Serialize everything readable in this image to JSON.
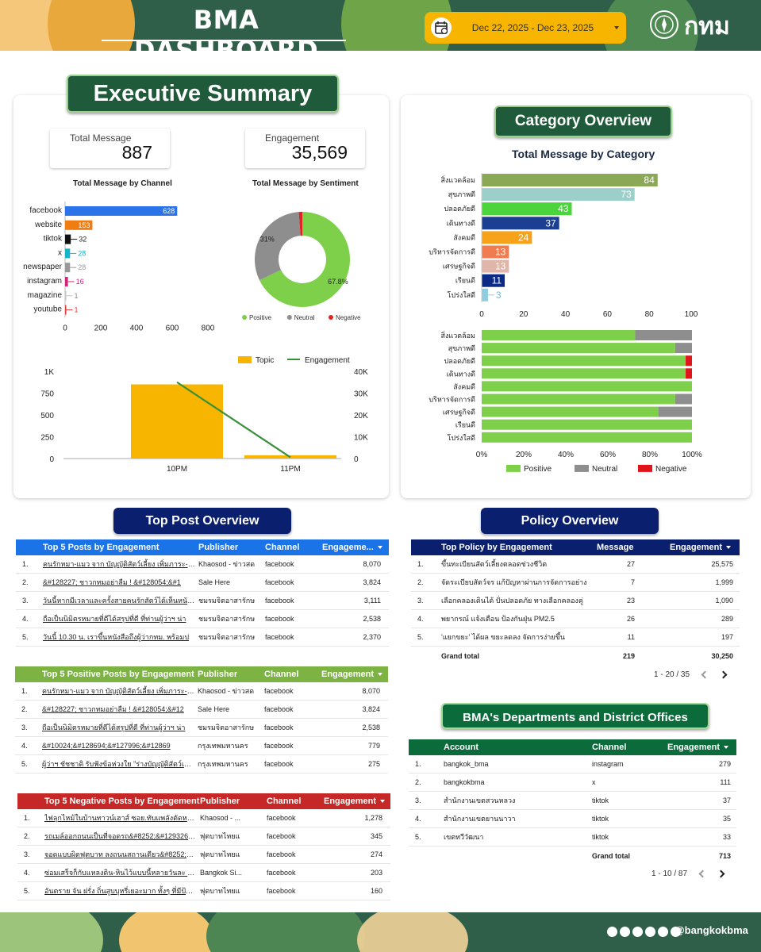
{
  "header": {
    "title": "BMA DASHBOARD",
    "date_range": "Dec 22, 2025 - Dec 23, 2025",
    "logo_text": "กทม"
  },
  "footer": {
    "handle": "@bangkokbma",
    "social_icons": [
      "x-icon",
      "facebook-icon",
      "youtube-icon",
      "instagram-icon",
      "line-icon",
      "tiktok-icon"
    ]
  },
  "executive": {
    "title": "Executive Summary",
    "kpis": [
      {
        "label": "Total Message",
        "value": "887"
      },
      {
        "label": "Engagement",
        "value": "35,569"
      }
    ]
  },
  "channel_chart": {
    "chart_data": {
      "type": "bar",
      "title": "Total Message by Channel",
      "categories": [
        "facebook",
        "website",
        "tiktok",
        "x",
        "newspaper",
        "instagram",
        "magazine",
        "youtube"
      ],
      "values": [
        628,
        153,
        32,
        28,
        28,
        16,
        1,
        1
      ],
      "colors": [
        "#2b73e8",
        "#f07d11",
        "#111111",
        "#17b3c9",
        "#999999",
        "#d4237a",
        "#c7c7c7",
        "#e43b3b"
      ],
      "ticks": [
        0,
        200,
        400,
        600,
        800
      ],
      "xlim": [
        0,
        800
      ]
    }
  },
  "sentiment_chart": {
    "chart_data": {
      "type": "pie",
      "title": "Total Message by Sentiment",
      "slices": [
        {
          "name": "Positive",
          "value": 67.8,
          "label": "67.8%",
          "color": "#7ed04b"
        },
        {
          "name": "Neutral",
          "value": 31,
          "label": "31%",
          "color": "#8e8e8e"
        },
        {
          "name": "Negative",
          "value": 1.2,
          "label": "",
          "color": "#e02424"
        },
        {
          "name": "",
          "value": 0,
          "label": "",
          "color": "#f5b400"
        }
      ]
    }
  },
  "time_chart": {
    "chart_data": {
      "type": "bar",
      "categories": [
        "10PM",
        "11PM"
      ],
      "series": [
        {
          "name": "Topic",
          "values": [
            850,
            37
          ],
          "color": "#f7b500"
        },
        {
          "name": "Engagement",
          "values": [
            35000,
            569
          ],
          "color": "#3a8f3a"
        }
      ],
      "yleft_ticks": [
        "0",
        "250",
        "500",
        "750",
        "1K"
      ],
      "yright_ticks": [
        "0",
        "10K",
        "20K",
        "30K",
        "40K"
      ],
      "ylim_left": [
        0,
        1000
      ],
      "ylim_right": [
        0,
        40000
      ]
    }
  },
  "category": {
    "title": "Category Overview",
    "chart_title": "Total Message by Category",
    "categories": [
      "สิ่งแวดล้อม",
      "สุขภาพดี",
      "ปลอดภัยดี",
      "เดินทางดี",
      "สังคมดี",
      "บริหารจัดการดี",
      "เศรษฐกิจดี",
      "เรียนดี",
      "โปร่งใสดี"
    ],
    "bar_chart": {
      "type": "bar",
      "values": [
        84,
        73,
        43,
        37,
        24,
        13,
        13,
        11,
        3
      ],
      "colors": [
        "#8aa856",
        "#9ccfc9",
        "#4cd43c",
        "#1d3f91",
        "#f7a21b",
        "#f07d52",
        "#e0b6aa",
        "#0b2a86",
        "#8fcce0"
      ],
      "ticks": [
        0,
        20,
        40,
        60,
        80,
        100
      ],
      "xlim": [
        0,
        100
      ]
    },
    "stacked_chart": {
      "type": "bar",
      "ticks": [
        "0%",
        "20%",
        "40%",
        "60%",
        "80%",
        "100%"
      ],
      "series": [
        {
          "name": "Positive",
          "color": "#7ed04b",
          "values": [
            73,
            92,
            97,
            97,
            100,
            92,
            84,
            100,
            100
          ]
        },
        {
          "name": "Neutral",
          "color": "#8e8e8e",
          "values": [
            27,
            8,
            0,
            0,
            0,
            8,
            16,
            0,
            0
          ]
        },
        {
          "name": "Negative",
          "color": "#e0141a",
          "values": [
            0,
            0,
            3,
            3,
            0,
            0,
            0,
            0,
            0
          ]
        }
      ]
    }
  },
  "top_post": {
    "title": "Top Post Overview",
    "tables": [
      {
        "title": "Top 5 Posts by Engagement",
        "color": "#1b73e8",
        "cols": [
          "Publisher",
          "Channel",
          "Engageme..."
        ],
        "rows": [
          {
            "n": "1.",
            "post": "คนรักหมา-แมว จาก บัญญัติสัตว์เลี้ยง เพิ่มภาระ-ภูปส",
            "pub": "Khaosod - ข่าวสด",
            "ch": "facebook",
            "val": "8,070"
          },
          {
            "n": "2.",
            "post": "&#128227; ชาวกทมอย่าลืม ! &#128054;&#1",
            "pub": "Sale Here",
            "ch": "facebook",
            "val": "3,824"
          },
          {
            "n": "3.",
            "post": "วันนี้หากมีเวลาและครั้งสายคนรักสัตว์ได้เห็นหนังสือ ส",
            "pub": "ชมรมจิตอาสารักษ",
            "ch": "facebook",
            "val": "3,111"
          },
          {
            "n": "4.",
            "post": "ถือเป็นนิมิตรหมายที่ดีได้สรุปที่ดี ที่ท่านผู้ว่าฯ น่า",
            "pub": "ชมรมจิตอาสารักษ",
            "ch": "facebook",
            "val": "2,538"
          },
          {
            "n": "5.",
            "post": "วันนี้ 10.30 น. เราขึ้นหนังสือถึงผู้ว่ากทม. พร้อมป",
            "pub": "ชมรมจิตอาสารักษ",
            "ch": "facebook",
            "val": "2,370"
          }
        ]
      },
      {
        "title": "Top 5 Positive Posts by Engagement",
        "color": "#7cb342",
        "cols": [
          "Publisher",
          "Channel",
          "Engagement"
        ],
        "rows": [
          {
            "n": "1.",
            "post": "คนรักหมา-แมว จาก บัญญัติสัตว์เลี้ยง เพิ่มภาระ-ภูปส",
            "pub": "Khaosod - ข่าวสด",
            "ch": "facebook",
            "val": "8,070"
          },
          {
            "n": "2.",
            "post": "&#128227; ชาวกทมอย่าลืม ! &#128054;&#12",
            "pub": "Sale Here",
            "ch": "facebook",
            "val": "3,824"
          },
          {
            "n": "3.",
            "post": "ถือเป็นนิมิตรหมายที่ดีได้สรุปที่ดี ที่ท่านผู้ว่าฯ น่า",
            "pub": "ชมรมจิตอาสารักษ",
            "ch": "facebook",
            "val": "2,538"
          },
          {
            "n": "4.",
            "post": "&#10024;&#128694;&#127996;&#12869",
            "pub": "กรุงเทพมหานคร",
            "ch": "facebook",
            "val": "779"
          },
          {
            "n": "5.",
            "post": "ผู้ว่าฯ ชัชชาติ รับฟังข้อห่วงใย \"ร่างบัญญัติสัตว์เลี้ยง\"",
            "pub": "กรุงเทพมหานคร",
            "ch": "facebook",
            "val": "275"
          }
        ]
      },
      {
        "title": "Top 5 Negative Posts by Engagement",
        "color": "#c62828",
        "cols": [
          "Publisher",
          "Channel",
          "Engagement"
        ],
        "rows": [
          {
            "n": "1.",
            "post": "ไฟลุกไหม้ในบ้านทาวน์เฮาส์ ซอย.ทับแพลังตัดหน้าลาดกระบัง",
            "pub": "Khaosod - ...",
            "ch": "facebook",
            "val": "1,278"
          },
          {
            "n": "2.",
            "post": "รถเมล์ออกถนนเป็นที่จอดรถ&#8252;&#129326;ถนน",
            "pub": "ฟุตบาทไทยแ",
            "ch": "facebook",
            "val": "345"
          },
          {
            "n": "3.",
            "post": "จอดแบบผิดฟุตบาท ลงถนนสถานเดียว&#8252;&#12",
            "pub": "ฟุตบาทไทยแ",
            "ch": "facebook",
            "val": "274"
          },
          {
            "n": "4.",
            "post": "ซ่อมเสร็จก็กับแหลงดิน-หินไว้แบบนี้หลายวันละ เป็นอันตราย",
            "pub": "Bangkok Si...",
            "ch": "facebook",
            "val": "203"
          },
          {
            "n": "5.",
            "post": "อันตราย จัน ฝรั่ง ถิ่นสูบบุหรี่เยอะมาก ทั้งๆ ที่มีป้ายห้ามสูบ",
            "pub": "ฟุตบาทไทยแ",
            "ch": "facebook",
            "val": "160"
          }
        ]
      }
    ]
  },
  "policy": {
    "title": "Policy Overview",
    "table": {
      "title": "Top Policy by Engagement",
      "cols": [
        "Message",
        "Engagement"
      ],
      "rows": [
        {
          "n": "1.",
          "name": "ขึ้นทะเบียนสัตว์เลี้ยงตลอดช่วงชีวิต",
          "msg": "27",
          "val": "25,575"
        },
        {
          "n": "2.",
          "name": "จัดระเบียบสัตว์จร แก้ปัญหาผ่านการจัดการอย่าง",
          "msg": "7",
          "val": "1,999"
        },
        {
          "n": "3.",
          "name": "เลือกคลองเดินได้ ปั่นปลอดภัย ทางเลือกคลองคู่",
          "msg": "23",
          "val": "1,090"
        },
        {
          "n": "4.",
          "name": "พยากรณ์ แจ้งเตือน ป้องกันฝุ่น PM2.5",
          "msg": "26",
          "val": "289"
        },
        {
          "n": "5.",
          "name": "'แยกขยะ' ได้ผล ขยะลดลง จัดการง่ายขึ้น",
          "msg": "11",
          "val": "197"
        }
      ],
      "total_label": "Grand total",
      "total_msg": "219",
      "total_val": "30,250",
      "pager": "1 - 20 / 35"
    }
  },
  "departments": {
    "title": "BMA's Departments and District Offices",
    "table": {
      "cols": [
        "Account",
        "Channel",
        "Engagement"
      ],
      "rows": [
        {
          "n": "1.",
          "acc": "bangkok_bma",
          "ch": "instagram",
          "val": "279"
        },
        {
          "n": "2.",
          "acc": "bangkokbma",
          "ch": "x",
          "val": "111"
        },
        {
          "n": "3.",
          "acc": "สำนักงานเขตสวนหลวง",
          "ch": "tiktok",
          "val": "37"
        },
        {
          "n": "4.",
          "acc": "สำนักงานเขตยานนาวา",
          "ch": "tiktok",
          "val": "35"
        },
        {
          "n": "5.",
          "acc": "เขตทวีวัฒนา",
          "ch": "tiktok",
          "val": "33"
        }
      ],
      "total_label": "Grand total",
      "total_val": "713",
      "pager": "1 - 10 / 87"
    }
  }
}
